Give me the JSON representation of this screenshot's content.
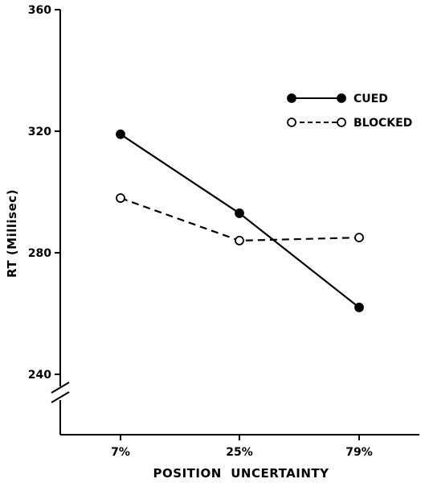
{
  "chart_data": {
    "type": "line",
    "categories": [
      "7%",
      "25%",
      "79%"
    ],
    "series": [
      {
        "name": "CUED",
        "values": [
          319,
          293,
          262
        ],
        "line_style": "solid",
        "marker": "filled-circle"
      },
      {
        "name": "BLOCKED",
        "values": [
          298,
          284,
          285
        ],
        "line_style": "dashed",
        "marker": "open-circle"
      }
    ],
    "xlabel": "POSITION  UNCERTAINTY",
    "ylabel": "RT (Millisec)",
    "ylim": [
      240,
      360
    ],
    "yticks": [
      240,
      280,
      320,
      360
    ],
    "y_axis_break": true,
    "grid": false,
    "legend_position": "top-right",
    "colors": {
      "ink": "#000000",
      "background": "#ffffff"
    }
  }
}
